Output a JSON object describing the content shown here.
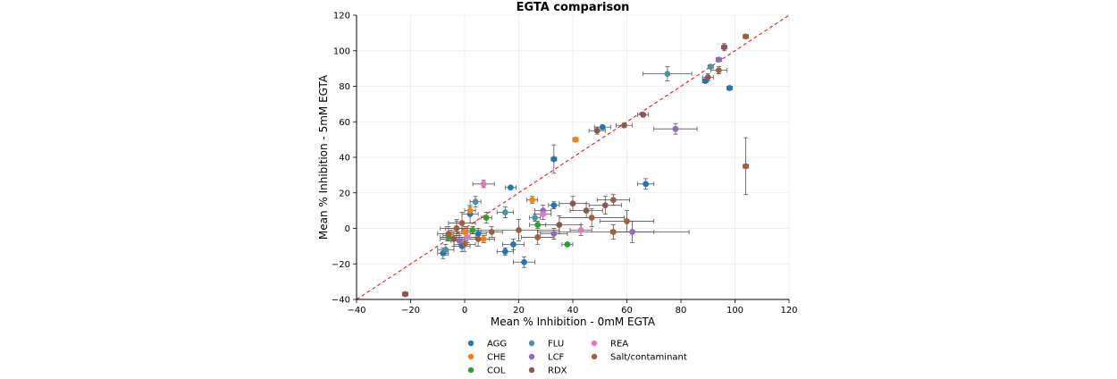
{
  "chart_data": {
    "type": "scatter",
    "title": "EGTA comparison",
    "xlabel": "Mean % Inhibition - 0mM EGTA",
    "ylabel": "Mean % Inhibition - 5mM EGTA",
    "xlim": [
      -40,
      120
    ],
    "ylim": [
      -40,
      120
    ],
    "xticks": [
      "−40",
      "−20",
      "0",
      "20",
      "40",
      "60",
      "80",
      "100",
      "120"
    ],
    "yticks": [
      "−40",
      "−20",
      "0",
      "20",
      "40",
      "60",
      "80",
      "100",
      "120"
    ],
    "grid": true,
    "legend_position": "bottom",
    "reference_line": {
      "style": "dashed",
      "color": "#e41a1c",
      "from": [
        -40,
        -40
      ],
      "to": [
        120,
        120
      ]
    },
    "series": [
      {
        "name": "AGG",
        "color": "#1f77b4",
        "points": [
          {
            "x": 33,
            "y": 39,
            "xerr": 1,
            "yerr": 8
          },
          {
            "x": 17,
            "y": 23,
            "xerr": 2,
            "yerr": 1
          },
          {
            "x": 51,
            "y": 57,
            "xerr": 3,
            "yerr": 1
          },
          {
            "x": 67,
            "y": 25,
            "xerr": 3,
            "yerr": 3
          },
          {
            "x": 98,
            "y": 79,
            "xerr": 1,
            "yerr": 1
          },
          {
            "x": 89,
            "y": 83,
            "xerr": 1,
            "yerr": 1
          },
          {
            "x": 22,
            "y": -19,
            "xerr": 4,
            "yerr": 3
          },
          {
            "x": 15,
            "y": -13,
            "xerr": 3,
            "yerr": 2
          },
          {
            "x": 33,
            "y": 13,
            "xerr": 2,
            "yerr": 2
          },
          {
            "x": 2,
            "y": 8,
            "xerr": 3,
            "yerr": 5
          },
          {
            "x": -3,
            "y": 0,
            "xerr": 4,
            "yerr": 4
          },
          {
            "x": -8,
            "y": -14,
            "xerr": 2,
            "yerr": 3
          },
          {
            "x": 5,
            "y": -3,
            "xerr": 3,
            "yerr": 3
          },
          {
            "x": 18,
            "y": -9,
            "xerr": 4,
            "yerr": 3
          },
          {
            "x": -1,
            "y": -10,
            "xerr": 3,
            "yerr": 3
          }
        ]
      },
      {
        "name": "CHE",
        "color": "#ff7f0e",
        "points": [
          {
            "x": 41,
            "y": 50,
            "xerr": 1,
            "yerr": 1
          },
          {
            "x": 25,
            "y": 16,
            "xerr": 2,
            "yerr": 2
          },
          {
            "x": 2,
            "y": 10,
            "xerr": 2,
            "yerr": 2
          },
          {
            "x": -5,
            "y": -4,
            "xerr": 3,
            "yerr": 3
          },
          {
            "x": 7,
            "y": -6,
            "xerr": 2,
            "yerr": 2
          },
          {
            "x": 0,
            "y": -2,
            "xerr": 3,
            "yerr": 3
          }
        ]
      },
      {
        "name": "COL",
        "color": "#2ca02c",
        "points": [
          {
            "x": 38,
            "y": -9,
            "xerr": 2,
            "yerr": 1
          },
          {
            "x": 8,
            "y": 6,
            "xerr": 2,
            "yerr": 3
          },
          {
            "x": 27,
            "y": 2,
            "xerr": 3,
            "yerr": 2
          },
          {
            "x": -6,
            "y": -5,
            "xerr": 3,
            "yerr": 2
          },
          {
            "x": 3,
            "y": -1,
            "xerr": 2,
            "yerr": 2
          }
        ]
      },
      {
        "name": "FLU",
        "color": "#4a93a6",
        "points": [
          {
            "x": 75,
            "y": 87,
            "xerr": 9,
            "yerr": 4
          },
          {
            "x": 91,
            "y": 91,
            "xerr": 1,
            "yerr": 1
          },
          {
            "x": 15,
            "y": 9,
            "xerr": 3,
            "yerr": 3
          },
          {
            "x": 26,
            "y": 6,
            "xerr": 2,
            "yerr": 2
          },
          {
            "x": -7,
            "y": -12,
            "xerr": 3,
            "yerr": 3
          },
          {
            "x": 4,
            "y": 15,
            "xerr": 2,
            "yerr": 3
          }
        ]
      },
      {
        "name": "LCF",
        "color": "#9467bd",
        "points": [
          {
            "x": 94,
            "y": 95,
            "xerr": 1,
            "yerr": 1
          },
          {
            "x": 78,
            "y": 56,
            "xerr": 8,
            "yerr": 3
          },
          {
            "x": 62,
            "y": -2,
            "xerr": 8,
            "yerr": 6
          },
          {
            "x": 29,
            "y": 10,
            "xerr": 3,
            "yerr": 3
          },
          {
            "x": -2,
            "y": -7,
            "xerr": 3,
            "yerr": 3
          },
          {
            "x": 33,
            "y": -3,
            "xerr": 5,
            "yerr": 3
          }
        ]
      },
      {
        "name": "RDX",
        "color": "#8c564b",
        "points": [
          {
            "x": 96,
            "y": 102,
            "xerr": 1,
            "yerr": 2
          },
          {
            "x": 90,
            "y": 85,
            "xerr": 2,
            "yerr": 2
          },
          {
            "x": 66,
            "y": 64,
            "xerr": 2,
            "yerr": 1
          },
          {
            "x": 59,
            "y": 58,
            "xerr": 3,
            "yerr": 1
          },
          {
            "x": 49,
            "y": 55,
            "xerr": 3,
            "yerr": 2
          },
          {
            "x": 40,
            "y": 14,
            "xerr": 5,
            "yerr": 4
          },
          {
            "x": 45,
            "y": 10,
            "xerr": 6,
            "yerr": 4
          },
          {
            "x": -22,
            "y": -37,
            "xerr": 1,
            "yerr": 1
          },
          {
            "x": 52,
            "y": 13,
            "xerr": 6,
            "yerr": 5
          },
          {
            "x": 35,
            "y": 2,
            "xerr": 8,
            "yerr": 5
          },
          {
            "x": -4,
            "y": -6,
            "xerr": 5,
            "yerr": 4
          }
        ]
      },
      {
        "name": "REA",
        "color": "#e377c2",
        "points": [
          {
            "x": 7,
            "y": 25,
            "xerr": 4,
            "yerr": 2
          },
          {
            "x": 29,
            "y": 8,
            "xerr": 3,
            "yerr": 3
          },
          {
            "x": 1,
            "y": -5,
            "xerr": 3,
            "yerr": 3
          },
          {
            "x": 43,
            "y": -1,
            "xerr": 4,
            "yerr": 3
          }
        ]
      },
      {
        "name": "Salt/contaminant",
        "color": "#a0603b",
        "points": [
          {
            "x": 104,
            "y": 108,
            "xerr": 1,
            "yerr": 1
          },
          {
            "x": 94,
            "y": 89,
            "xerr": 3,
            "yerr": 2
          },
          {
            "x": 104,
            "y": 35,
            "xerr": 1,
            "yerr": 16
          },
          {
            "x": 55,
            "y": 16,
            "xerr": 6,
            "yerr": 3
          },
          {
            "x": 60,
            "y": 4,
            "xerr": 10,
            "yerr": 6
          },
          {
            "x": 47,
            "y": 6,
            "xerr": 12,
            "yerr": 5
          },
          {
            "x": 55,
            "y": -2,
            "xerr": 28,
            "yerr": 4
          },
          {
            "x": 20,
            "y": -1,
            "xerr": 15,
            "yerr": 6
          },
          {
            "x": -3,
            "y": 0,
            "xerr": 6,
            "yerr": 5
          },
          {
            "x": 5,
            "y": -6,
            "xerr": 6,
            "yerr": 4
          },
          {
            "x": -6,
            "y": -3,
            "xerr": 4,
            "yerr": 4
          },
          {
            "x": 10,
            "y": -2,
            "xerr": 4,
            "yerr": 3
          },
          {
            "x": 0,
            "y": -9,
            "xerr": 4,
            "yerr": 4
          },
          {
            "x": 27,
            "y": -5,
            "xerr": 6,
            "yerr": 4
          },
          {
            "x": -1,
            "y": 3,
            "xerr": 5,
            "yerr": 6
          }
        ]
      }
    ]
  }
}
